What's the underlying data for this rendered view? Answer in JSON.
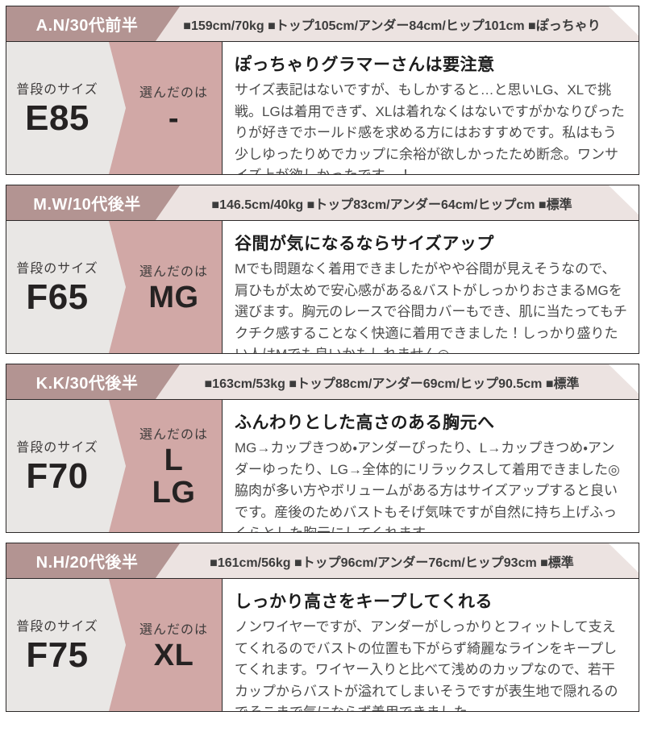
{
  "labels": {
    "usual": "普段のサイズ",
    "chosen": "選んだのは"
  },
  "colors": {
    "header_ribbon": "#b39492",
    "header_band": "#ece3e1",
    "usual_panel_gray": "#e9e7e5",
    "chosen_panel_pink": "#d1a8a6",
    "border_dark": "#2c2929"
  },
  "sections": [
    {
      "person": "A.N/30代前半",
      "stats": "■159cm/70kg ■トップ105cm/アンダー84cm/ヒップ101cm ■ぽっちゃり",
      "usual_size": "E85",
      "chosen_size": "-",
      "review_title": "ぽっちゃりグラマーさんは要注意",
      "review_body": "サイズ表記はないですが、もしかすると…と思いLG、XLで挑戦。LGは着用できず、XLは着れなくはないですがかなりぴったりが好きでホールド感を求める方にはおすすめです。私はもう少しゆったりめでカップに余裕が欲しかったため断念。ワンサイズ上が欲しかったです…！"
    },
    {
      "person": "M.W/10代後半",
      "stats": "■146.5cm/40kg ■トップ83cm/アンダー64cm/ヒップcm ■標準",
      "usual_size": "F65",
      "chosen_size": "MG",
      "review_title": "谷間が気になるならサイズアップ",
      "review_body": "Mでも問題なく着用できましたがやや谷間が見えそうなので、肩ひもが太めで安心感がある&バストがしっかりおさまるMGを選びます。胸元のレースで谷間カバーもでき、肌に当たってもチクチク感することなく快適に着用できました！しっかり盛りたい人はMでも良いかもしれません◎"
    },
    {
      "person": "K.K/30代後半",
      "stats": "■163cm/53kg ■トップ88cm/アンダー69cm/ヒップ90.5cm ■標準",
      "usual_size": "F70",
      "chosen_size": "L\nLG",
      "review_title": "ふんわりとした高さのある胸元へ",
      "review_body": "MG→カップきつめ・アンダーぴったり、L→カップきつめ・アンダーゆったり、LG→全体的にリラックスして着用できました◎脇肉が多い方やボリュームがある方はサイズアップすると良いです。産後のためバストもそげ気味ですが自然に持ち上げふっくらとした胸元にしてくれます。"
    },
    {
      "person": "N.H/20代後半",
      "stats": "■161cm/56kg ■トップ96cm/アンダー76cm/ヒップ93cm ■標準",
      "usual_size": "F75",
      "chosen_size": "XL",
      "review_title": "しっかり高さをキープしてくれる",
      "review_body": "ノンワイヤーですが、アンダーがしっかりとフィットして支えてくれるのでバストの位置も下がらず綺麗なラインをキープしてくれます。ワイヤー入りと比べて浅めのカップなので、若干カップからバストが溢れてしまいそうですが表生地で隠れるのでそこまで気にならず着用できました。"
    }
  ]
}
